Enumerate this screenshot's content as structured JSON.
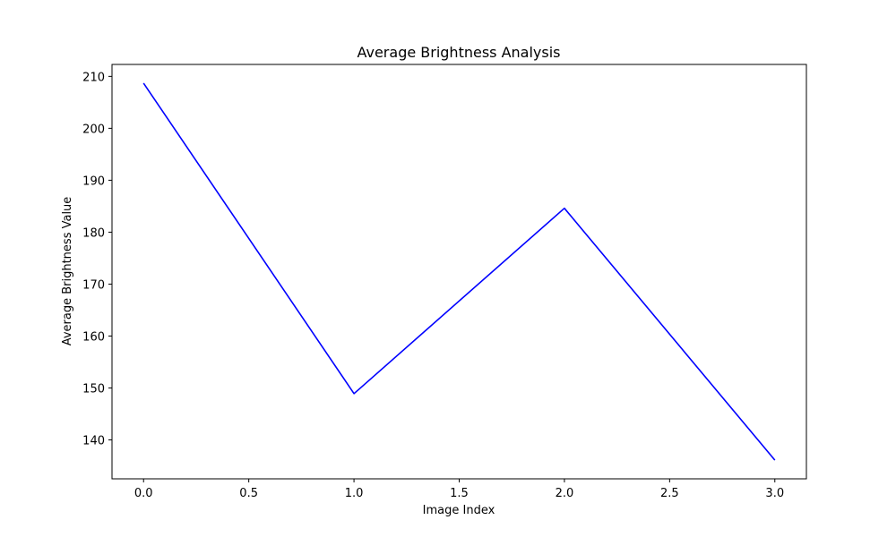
{
  "chart_data": {
    "type": "line",
    "title": "Average Brightness Analysis",
    "xlabel": "Image Index",
    "ylabel": "Average Brightness Value",
    "x": [
      0,
      1,
      2,
      3
    ],
    "series": [
      {
        "values": [
          208.7,
          148.9,
          184.6,
          136.1
        ],
        "color": "#0000ff"
      }
    ],
    "xlim": [
      -0.15,
      3.15
    ],
    "ylim": [
      132.5,
      212.3
    ],
    "xticks": [
      0.0,
      0.5,
      1.0,
      1.5,
      2.0,
      2.5,
      3.0
    ],
    "xtick_labels": [
      "0.0",
      "0.5",
      "1.0",
      "1.5",
      "2.0",
      "2.5",
      "3.0"
    ],
    "yticks": [
      140,
      150,
      160,
      170,
      180,
      190,
      200,
      210
    ],
    "ytick_labels": [
      "140",
      "150",
      "160",
      "170",
      "180",
      "190",
      "200",
      "210"
    ],
    "grid": false,
    "legend": "none"
  }
}
